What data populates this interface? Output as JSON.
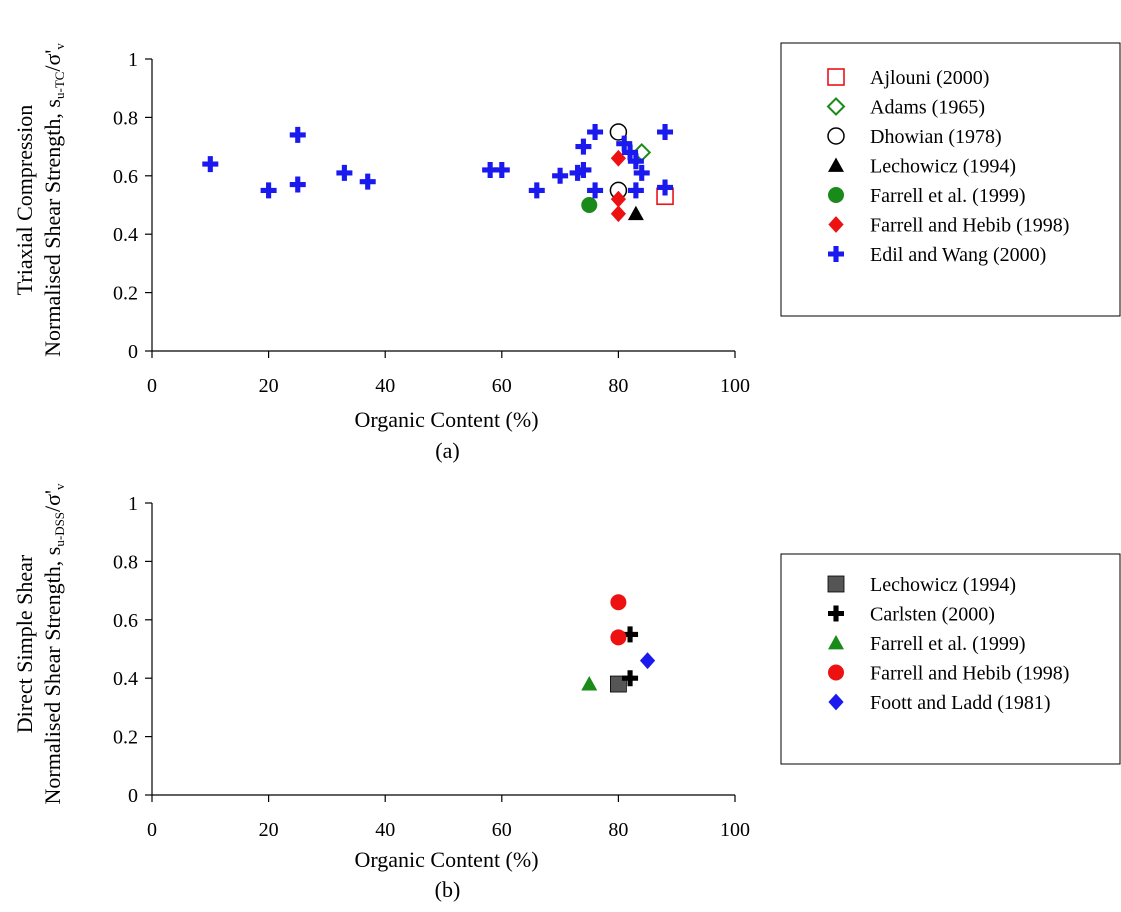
{
  "chart_data": [
    {
      "type": "scatter",
      "panel_label": "(a)",
      "xlabel": "Organic Content (%)",
      "ylabel_line1": "Triaxial Compression",
      "ylabel_line2_prefix": "Normalised Shear Strength, s",
      "ylabel_line2_sub": "u-TC",
      "ylabel_line2_mid": "/σ'",
      "ylabel_line2_sub2": "v",
      "xlim": [
        0,
        100
      ],
      "ylim": [
        0,
        1
      ],
      "x_ticks": [
        "0",
        "20",
        "40",
        "60",
        "80",
        "100"
      ],
      "y_ticks": [
        "0",
        "0.2",
        "0.4",
        "0.6",
        "0.8",
        "1"
      ],
      "legend_position": "right",
      "series": [
        {
          "name": "Ajlouni (2000)",
          "marker": "square-open",
          "color": "#e8141c",
          "points": [
            [
              88,
              0.53
            ]
          ]
        },
        {
          "name": "Adams (1965)",
          "marker": "diamond-open",
          "color": "#1a8a1a",
          "points": [
            [
              84,
              0.68
            ]
          ]
        },
        {
          "name": "Dhowian (1978)",
          "marker": "circle-open",
          "color": "#000000",
          "points": [
            [
              80,
              0.75
            ],
            [
              80,
              0.55
            ]
          ]
        },
        {
          "name": "Lechowicz (1994)",
          "marker": "triangle",
          "color": "#000000",
          "points": [
            [
              83,
              0.47
            ]
          ]
        },
        {
          "name": "Farrell et al. (1999)",
          "marker": "circle",
          "color": "#1a8a1a",
          "points": [
            [
              75,
              0.5
            ]
          ]
        },
        {
          "name": "Farrell and Hebib (1998)",
          "marker": "diamond",
          "color": "#ee1111",
          "points": [
            [
              80,
              0.66
            ],
            [
              80,
              0.52
            ],
            [
              80,
              0.47
            ]
          ]
        },
        {
          "name": "Edil and Wang (2000)",
          "marker": "plus",
          "color": "#1a1aee",
          "points": [
            [
              10,
              0.64
            ],
            [
              20,
              0.55
            ],
            [
              25,
              0.74
            ],
            [
              25,
              0.57
            ],
            [
              33,
              0.61
            ],
            [
              37,
              0.58
            ],
            [
              58,
              0.62
            ],
            [
              60,
              0.62
            ],
            [
              66,
              0.55
            ],
            [
              70,
              0.6
            ],
            [
              73,
              0.61
            ],
            [
              74,
              0.7
            ],
            [
              74,
              0.62
            ],
            [
              76,
              0.75
            ],
            [
              76,
              0.55
            ],
            [
              81,
              0.71
            ],
            [
              82,
              0.68
            ],
            [
              83,
              0.65
            ],
            [
              83,
              0.55
            ],
            [
              84,
              0.61
            ],
            [
              88,
              0.75
            ],
            [
              88,
              0.56
            ]
          ]
        }
      ]
    },
    {
      "type": "scatter",
      "panel_label": "(b)",
      "xlabel": "Organic Content (%)",
      "ylabel_line1": "Direct Simple Shear",
      "ylabel_line2_prefix": "Normalised Shear Strength, s",
      "ylabel_line2_sub": "u-DSS",
      "ylabel_line2_mid": "/σ'",
      "ylabel_line2_sub2": "v",
      "xlim": [
        0,
        100
      ],
      "ylim": [
        0,
        1
      ],
      "x_ticks": [
        "0",
        "20",
        "40",
        "60",
        "80",
        "100"
      ],
      "y_ticks": [
        "0",
        "0.2",
        "0.4",
        "0.6",
        "0.8",
        "1"
      ],
      "legend_position": "right",
      "series": [
        {
          "name": "Lechowicz (1994)",
          "marker": "square",
          "color": "#555555",
          "points": [
            [
              80,
              0.38
            ]
          ]
        },
        {
          "name": "Carlsten (2000)",
          "marker": "plus",
          "color": "#000000",
          "points": [
            [
              82,
              0.55
            ],
            [
              82,
              0.4
            ]
          ]
        },
        {
          "name": "Farrell et al. (1999)",
          "marker": "triangle",
          "color": "#1a8a1a",
          "points": [
            [
              75,
              0.38
            ]
          ]
        },
        {
          "name": "Farrell and Hebib (1998)",
          "marker": "circle",
          "color": "#ee1111",
          "points": [
            [
              80,
              0.66
            ],
            [
              80,
              0.54
            ]
          ]
        },
        {
          "name": "Foott and Ladd (1981)",
          "marker": "diamond",
          "color": "#1a1aee",
          "points": [
            [
              85,
              0.46
            ]
          ]
        }
      ]
    }
  ]
}
